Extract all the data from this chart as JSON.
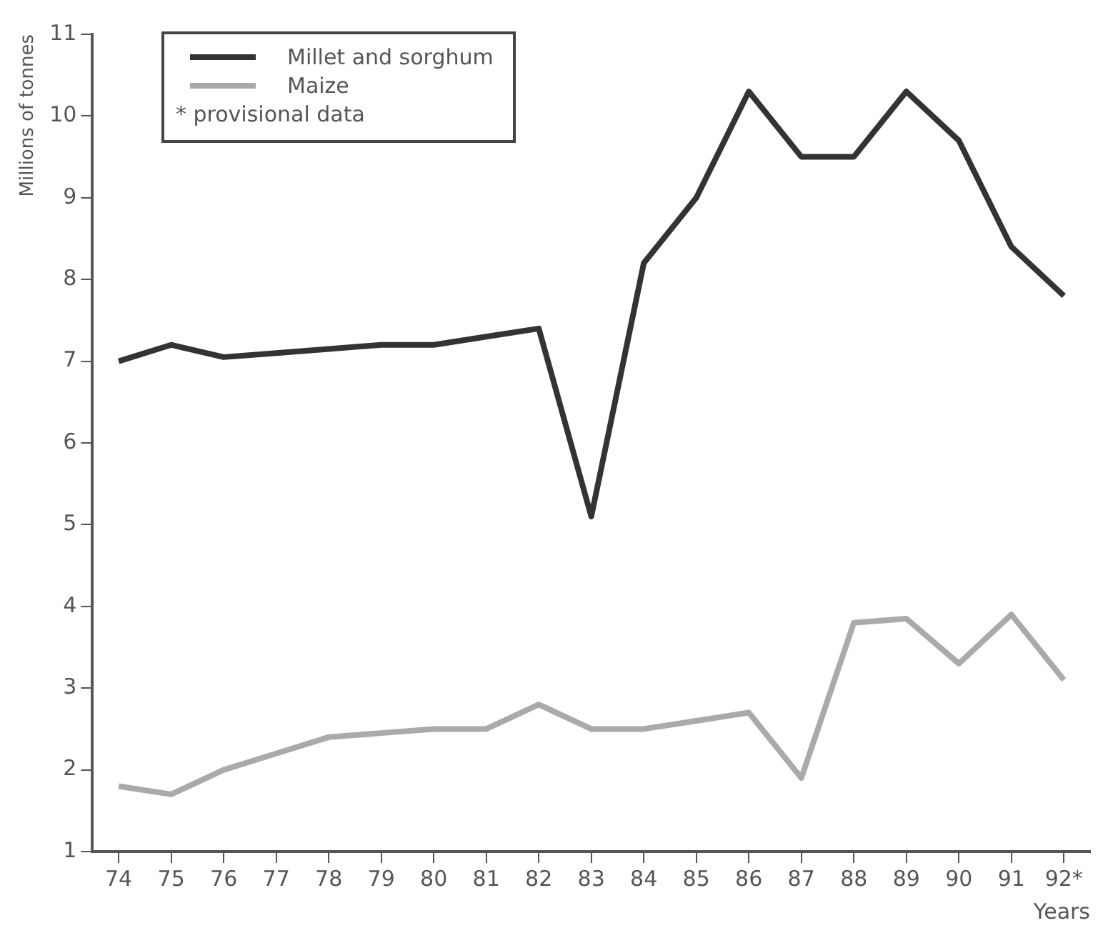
{
  "chart_data": {
    "type": "line",
    "ylabel": "Millions of tonnes",
    "xlabel": "Years",
    "categories": [
      "74",
      "75",
      "76",
      "77",
      "78",
      "79",
      "80",
      "81",
      "82",
      "83",
      "84",
      "85",
      "86",
      "87",
      "88",
      "89",
      "90",
      "91",
      "92*"
    ],
    "series": [
      {
        "name": "Millet and sorghum",
        "color": "#333333",
        "values": [
          7.0,
          7.2,
          7.05,
          7.1,
          7.15,
          7.2,
          7.2,
          7.3,
          7.4,
          5.1,
          8.2,
          9.0,
          10.3,
          9.5,
          9.5,
          10.3,
          9.7,
          8.4,
          7.8
        ]
      },
      {
        "name": "Maize",
        "color": "#aaaaaa",
        "values": [
          1.8,
          1.7,
          2.0,
          2.2,
          2.4,
          2.45,
          2.5,
          2.5,
          2.8,
          2.5,
          2.5,
          2.6,
          2.7,
          1.9,
          3.8,
          3.85,
          3.3,
          3.9,
          3.1
        ]
      }
    ],
    "ylim": [
      1,
      11
    ],
    "yticks": [
      1,
      2,
      3,
      4,
      5,
      6,
      7,
      8,
      9,
      10,
      11
    ],
    "grid": false,
    "legend": "top left",
    "marker": "none",
    "line_style": "solid",
    "annotations": [
      "* provisional data"
    ]
  }
}
